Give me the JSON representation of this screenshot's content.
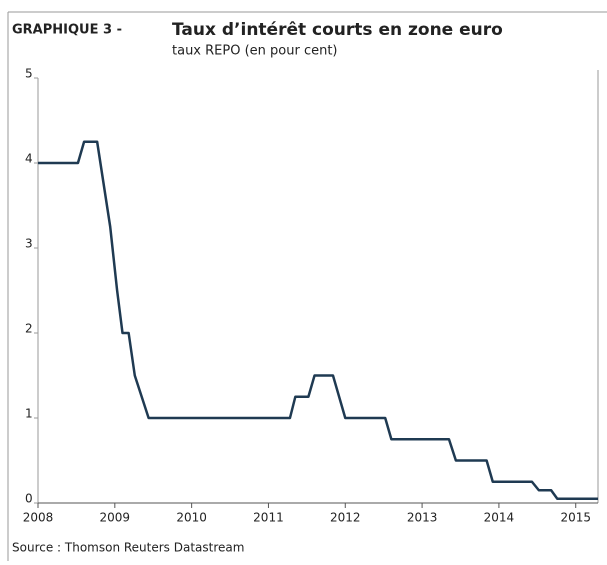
{
  "chart_data": {
    "type": "line",
    "label": "GRAPHIQUE 3 -",
    "title": "Taux d’intérêt courts en zone euro",
    "subtitle": "taux REPO (en pour cent)",
    "source": "Source : Thomson Reuters Datastream",
    "x": [
      2008.0,
      2008.52,
      2008.6,
      2008.77,
      2008.94,
      2009.03,
      2009.1,
      2009.18,
      2009.26,
      2009.44,
      2011.28,
      2011.35,
      2011.52,
      2011.6,
      2011.84,
      2012.0,
      2012.52,
      2012.6,
      2013.35,
      2013.44,
      2013.84,
      2013.92,
      2014.43,
      2014.52,
      2014.68,
      2014.76,
      2015.29
    ],
    "values": [
      4,
      4,
      4.25,
      4.25,
      3.25,
      2.5,
      2,
      2,
      1.5,
      1,
      1,
      1.25,
      1.25,
      1.5,
      1.5,
      1,
      1,
      0.75,
      0.75,
      0.5,
      0.5,
      0.25,
      0.25,
      0.15,
      0.15,
      0.05,
      0.05
    ],
    "color": "#1f3a52",
    "xlim": [
      2008,
      2015.29
    ],
    "xticks": [
      2008,
      2009,
      2010,
      2011,
      2012,
      2013,
      2014,
      2015
    ],
    "ylim": [
      0,
      5
    ],
    "yticks": [
      0,
      1,
      2,
      3,
      4,
      5
    ]
  }
}
